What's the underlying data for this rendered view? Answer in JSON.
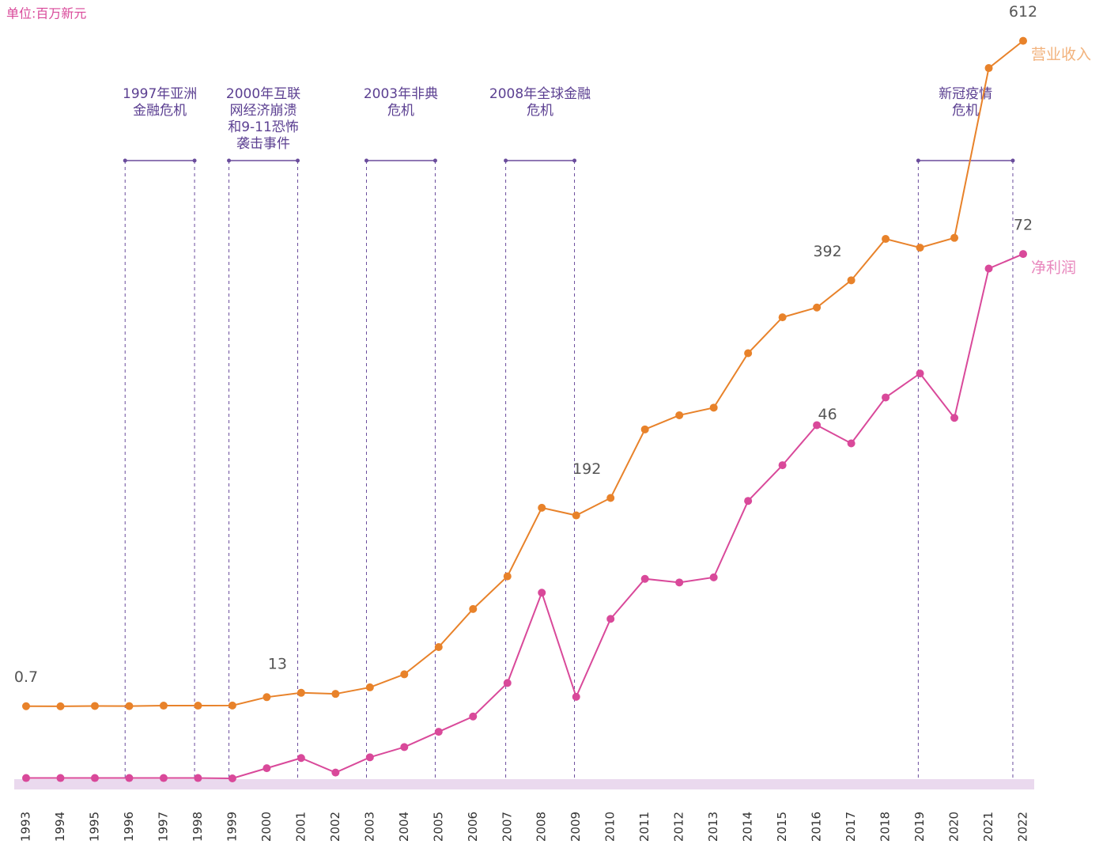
{
  "chart_data": {
    "type": "line",
    "subtitle": "单位:百万新元",
    "categories": [
      "1993",
      "1994",
      "1995",
      "1996",
      "1997",
      "1998",
      "1999",
      "2000",
      "2001",
      "2002",
      "2003",
      "2004",
      "2005",
      "2006",
      "2007",
      "2008",
      "2009",
      "2010",
      "2011",
      "2012",
      "2013",
      "2014",
      "2015",
      "2016",
      "2017",
      "2018",
      "2019",
      "2020",
      "2021",
      "2022"
    ],
    "series": [
      {
        "name": "营业收入",
        "color": "#e8822a",
        "legend_color": "#f2b27c",
        "values": [
          0.7,
          0.6,
          0.9,
          0.8,
          1.2,
          1.2,
          1.3,
          9,
          13,
          12,
          18,
          30,
          55,
          90,
          120,
          183,
          176,
          192,
          255,
          268,
          275,
          325,
          358,
          367,
          392,
          430,
          422,
          431,
          587,
          612
        ],
        "value_labels": [
          "0.7",
          null,
          null,
          null,
          null,
          null,
          null,
          null,
          "13",
          null,
          null,
          null,
          null,
          null,
          null,
          null,
          null,
          "192",
          null,
          null,
          null,
          null,
          null,
          null,
          "392",
          null,
          null,
          null,
          null,
          "612"
        ]
      },
      {
        "name": "净利润",
        "color": "#d9499a",
        "legend_color": "#e887bd",
        "axis": "y2",
        "values": [
          0.05,
          0.05,
          0.05,
          0.05,
          0.05,
          0.05,
          0.0,
          1.4,
          2.8,
          0.8,
          2.9,
          4.3,
          6.4,
          8.5,
          13.1,
          25.5,
          11.2,
          21.9,
          27.4,
          26.9,
          27.6,
          38.1,
          43,
          48.5,
          46,
          52.3,
          55.6,
          49.5,
          70,
          72
        ],
        "value_labels": [
          null,
          null,
          null,
          null,
          null,
          null,
          null,
          null,
          null,
          null,
          null,
          null,
          null,
          null,
          null,
          null,
          null,
          null,
          null,
          null,
          null,
          null,
          null,
          null,
          "46",
          null,
          null,
          null,
          null,
          "72"
        ]
      }
    ],
    "ylim": [
      -70,
      635
    ],
    "y2lim": [
      -0.65,
      104.7
    ],
    "events": [
      {
        "lines": [
          "1997年亚洲",
          "金融危机"
        ]
      },
      {
        "lines": [
          "2000年互联",
          "网经济崩溃",
          "和9-11恐怖",
          "袭击事件"
        ]
      },
      {
        "lines": [
          "2003年非典",
          "危机"
        ]
      },
      {
        "lines": [
          "2008年全球金融",
          "危机"
        ]
      },
      {
        "lines": [
          "新冠疫情",
          "危机"
        ]
      }
    ]
  }
}
